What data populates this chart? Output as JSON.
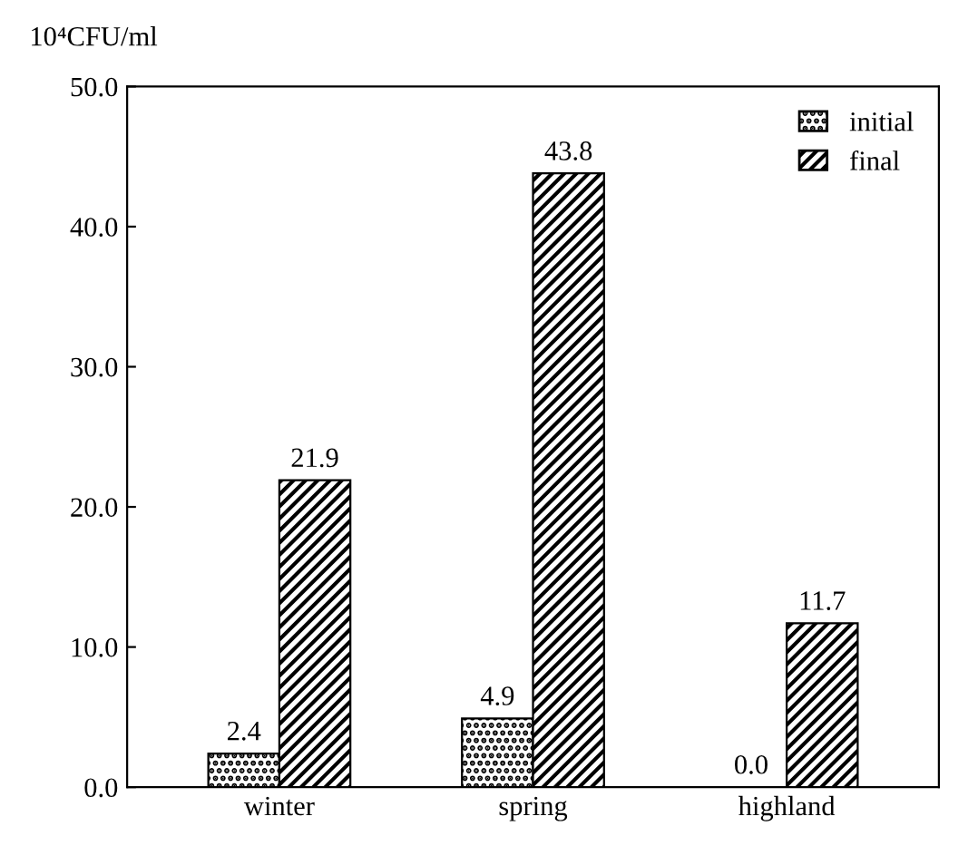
{
  "chart_data": {
    "type": "bar",
    "ylabel": "10⁴CFU/ml",
    "categories": [
      "winter",
      "spring",
      "highland"
    ],
    "series": [
      {
        "name": "initial",
        "color": "#000000",
        "values": [
          2.4,
          4.9,
          0.0
        ],
        "value_labels": [
          "2.4",
          "4.9",
          "0.0"
        ]
      },
      {
        "name": "final",
        "color": "#000000",
        "values": [
          21.9,
          43.8,
          11.7
        ],
        "value_labels": [
          "21.9",
          "43.8",
          "11.7"
        ]
      }
    ],
    "ylim": [
      0,
      50
    ],
    "yticks": [
      {
        "value": 0,
        "label": "0.0"
      },
      {
        "value": 10,
        "label": "10.0"
      },
      {
        "value": 20,
        "label": "20.0"
      },
      {
        "value": 30,
        "label": "30.0"
      },
      {
        "value": 40,
        "label": "40.0"
      },
      {
        "value": 50,
        "label": "50.0"
      }
    ],
    "grid": false,
    "legend": "top right"
  }
}
